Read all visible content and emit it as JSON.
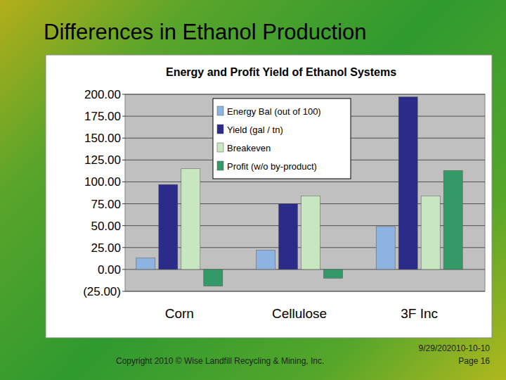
{
  "slide": {
    "title": "Differences in Ethanol Production",
    "footer": "Copyright 2010 © Wise Landfill Recycling & Mining, Inc.",
    "date": "9/29/202010-10-10",
    "page": "Page 16"
  },
  "chart_data": {
    "type": "bar",
    "title": "Energy and Profit Yield of Ethanol Systems",
    "categories": [
      "Corn",
      "Cellulose",
      "3F Inc"
    ],
    "series": [
      {
        "name": "Energy Bal (out of 100)",
        "color": "#8db3e2",
        "values": [
          13,
          22,
          49
        ]
      },
      {
        "name": "Yield (gal / tn)",
        "color": "#2b2b8a",
        "values": [
          97,
          75,
          197
        ]
      },
      {
        "name": "Breakeven",
        "color": "#c8e6c0",
        "values": [
          115,
          84,
          84
        ]
      },
      {
        "name": "Profit (w/o by-product)",
        "color": "#339966",
        "values": [
          -19,
          -10,
          113
        ]
      }
    ],
    "ylim": [
      -25,
      200
    ],
    "yticks": [
      {
        "value": -25,
        "label": "(25.00)"
      },
      {
        "value": 0,
        "label": "0.00"
      },
      {
        "value": 25,
        "label": "25.00"
      },
      {
        "value": 50,
        "label": "50.00"
      },
      {
        "value": 75,
        "label": "75.00"
      },
      {
        "value": 100,
        "label": "100.00"
      },
      {
        "value": 125,
        "label": "125.00"
      },
      {
        "value": 150,
        "label": "150.00"
      },
      {
        "value": 175,
        "label": "175.00"
      },
      {
        "value": 200,
        "label": "200.00"
      }
    ],
    "grid": true,
    "legend": "top"
  }
}
